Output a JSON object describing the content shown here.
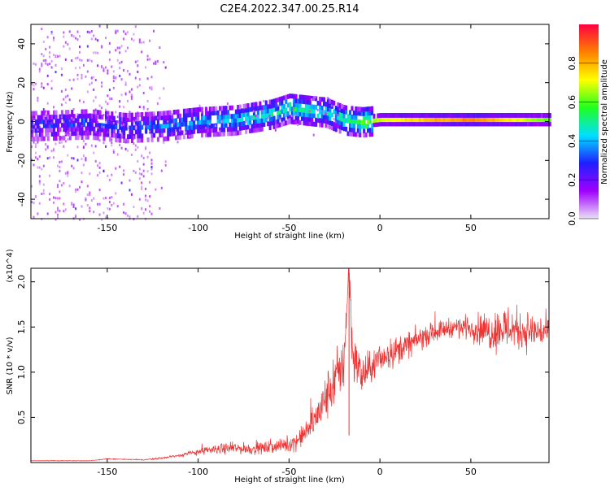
{
  "title": "C2E4.2022.347.00.25.R14",
  "chart_data": [
    {
      "type": "heatmap",
      "title": "C2E4.2022.347.00.25.R14",
      "xlabel": "Height of straight line (km)",
      "ylabel": "Frequency (Hz)",
      "xlim": [
        -192,
        93
      ],
      "ylim": [
        -50,
        50
      ],
      "xticks": [
        -150,
        -100,
        -50,
        0,
        50
      ],
      "yticks": [
        -40,
        -20,
        0,
        20,
        40
      ],
      "colorbar": {
        "label": "Normalized spectral amplitude",
        "range": [
          0,
          1
        ],
        "ticks": [
          0.0,
          0.2,
          0.4,
          0.6,
          0.8
        ],
        "colors": [
          "#e9e0f6",
          "#a000ff",
          "#2020ff",
          "#00e0ff",
          "#20ff20",
          "#ffff00",
          "#ff8000",
          "#ff0040"
        ]
      },
      "ridge": {
        "x": [
          -192,
          -160,
          -140,
          -120,
          -100,
          -80,
          -60,
          -50,
          -40,
          -30,
          -20,
          -10,
          0,
          50,
          93
        ],
        "frequency": [
          -3,
          -2,
          -4,
          -3,
          -1,
          0,
          3,
          6,
          5,
          4,
          0,
          -1,
          0,
          0,
          0
        ],
        "amplitude": [
          0.25,
          0.3,
          0.3,
          0.35,
          0.4,
          0.45,
          0.5,
          0.5,
          0.5,
          0.45,
          0.5,
          0.6,
          0.7,
          0.85,
          0.6
        ]
      },
      "grid": false
    },
    {
      "type": "line",
      "xlabel": "Height of straight line (km)",
      "ylabel": "SNR (10 * v/v)",
      "yscale_label": "(x10^4)",
      "xlim": [
        -192,
        93
      ],
      "ylim": [
        0,
        21500
      ],
      "xticks": [
        -150,
        -100,
        -50,
        0,
        50
      ],
      "yticks": [
        5000,
        10000,
        15000,
        20000
      ],
      "ytick_labels": [
        "0.5",
        "1.0",
        "1.5",
        "2.0"
      ],
      "series": [
        {
          "color": "#ee3333",
          "x": [
            -192,
            -160,
            -150,
            -130,
            -120,
            -110,
            -100,
            -90,
            -80,
            -70,
            -60,
            -50,
            -45,
            -40,
            -35,
            -30,
            -25,
            -20,
            -17,
            -15,
            -10,
            -5,
            0,
            10,
            20,
            30,
            40,
            50,
            60,
            70,
            80,
            93
          ],
          "y": [
            200,
            200,
            400,
            300,
            500,
            800,
            1200,
            1500,
            1600,
            1500,
            1700,
            2000,
            2500,
            3500,
            5000,
            7000,
            9000,
            11000,
            21500,
            12000,
            9500,
            10500,
            11500,
            12500,
            13500,
            14500,
            15000,
            15000,
            14500,
            15000,
            14500,
            14500
          ],
          "noise": [
            30,
            30,
            60,
            60,
            120,
            200,
            400,
            600,
            700,
            700,
            800,
            900,
            1200,
            1500,
            2200,
            3000,
            3500,
            3500,
            3000,
            3500,
            2500,
            2000,
            2000,
            1800,
            1500,
            1200,
            1200,
            1500,
            2500,
            3000,
            2500,
            2000
          ]
        }
      ],
      "grid": false
    }
  ]
}
